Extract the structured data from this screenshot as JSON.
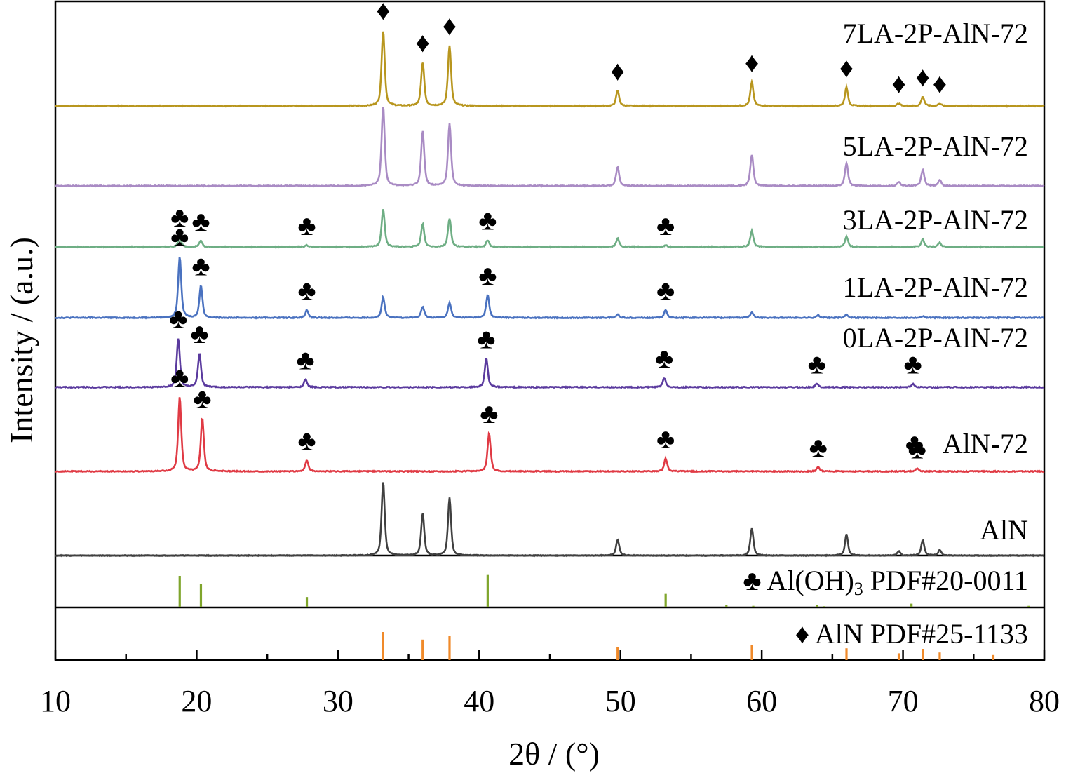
{
  "chart_data": {
    "type": "line",
    "x_range": [
      10,
      80
    ],
    "x_ticks": [
      "10",
      "20",
      "30",
      "40",
      "50",
      "60",
      "70",
      "80"
    ],
    "xlabel": "2θ / (°)",
    "ylabel": "Intensity / (a.u.)",
    "markers": {
      "club": "♣",
      "diamond": "♦"
    },
    "colors": {
      "s7LA": "#B8961E",
      "s5LA": "#A98BC4",
      "s3LA": "#6EAE84",
      "s1LA": "#4A72C0",
      "s0LA": "#5A3A9E",
      "sAlN72": "#E03A44",
      "sAlN": "#404040",
      "refOH": "#7FA52C",
      "refAlN": "#F08A2A"
    },
    "series": [
      {
        "key": "s7LA",
        "name": "7LA-2P-AlN-72",
        "peaks": [
          [
            33.2,
            0.9
          ],
          [
            36.0,
            0.52
          ],
          [
            37.9,
            0.72
          ],
          [
            49.8,
            0.18
          ],
          [
            59.3,
            0.28
          ],
          [
            66.0,
            0.22
          ],
          [
            69.7,
            0.03
          ],
          [
            71.4,
            0.11
          ],
          [
            72.6,
            0.03
          ]
        ],
        "club_markers": [],
        "diamond_markers": [
          33.2,
          36.0,
          37.9,
          49.8,
          59.3,
          66.0,
          69.7,
          71.4,
          72.6
        ]
      },
      {
        "key": "s5LA",
        "name": "5LA-2P-AlN-72",
        "peaks": [
          [
            33.2,
            0.95
          ],
          [
            36.0,
            0.65
          ],
          [
            37.9,
            0.74
          ],
          [
            49.8,
            0.23
          ],
          [
            59.3,
            0.37
          ],
          [
            66.0,
            0.27
          ],
          [
            69.7,
            0.05
          ],
          [
            71.4,
            0.19
          ],
          [
            72.6,
            0.07
          ]
        ],
        "club_markers": [],
        "diamond_markers": []
      },
      {
        "key": "s3LA",
        "name": "3LA-2P-AlN-72",
        "peaks": [
          [
            18.8,
            0.12
          ],
          [
            20.3,
            0.07
          ],
          [
            27.8,
            0.02
          ],
          [
            33.2,
            0.45
          ],
          [
            36.0,
            0.27
          ],
          [
            37.9,
            0.34
          ],
          [
            40.6,
            0.08
          ],
          [
            49.8,
            0.1
          ],
          [
            53.2,
            0.02
          ],
          [
            59.3,
            0.19
          ],
          [
            66.0,
            0.12
          ],
          [
            71.4,
            0.09
          ],
          [
            72.6,
            0.05
          ]
        ],
        "club_markers": [
          18.8,
          20.3,
          27.8,
          40.6,
          53.2
        ],
        "diamond_markers": []
      },
      {
        "key": "s1LA",
        "name": "1LA-2P-AlN-72",
        "peaks": [
          [
            18.8,
            0.73
          ],
          [
            20.3,
            0.38
          ],
          [
            27.8,
            0.09
          ],
          [
            33.2,
            0.24
          ],
          [
            36.0,
            0.13
          ],
          [
            37.9,
            0.18
          ],
          [
            40.6,
            0.27
          ],
          [
            49.8,
            0.04
          ],
          [
            53.2,
            0.09
          ],
          [
            59.3,
            0.07
          ],
          [
            64.0,
            0.03
          ],
          [
            66.0,
            0.04
          ],
          [
            71.4,
            0.02
          ]
        ],
        "club_markers": [
          18.8,
          20.3,
          27.8,
          40.6,
          53.2
        ],
        "diamond_markers": []
      },
      {
        "key": "s0LA",
        "name": "0LA-2P-AlN-72",
        "peaks": [
          [
            18.7,
            0.58
          ],
          [
            20.2,
            0.4
          ],
          [
            27.7,
            0.09
          ],
          [
            40.5,
            0.34
          ],
          [
            53.1,
            0.11
          ],
          [
            63.9,
            0.04
          ],
          [
            70.7,
            0.04
          ]
        ],
        "club_markers": [
          18.7,
          20.2,
          27.7,
          40.5,
          53.1,
          63.9,
          70.7
        ],
        "diamond_markers": []
      },
      {
        "key": "sAlN72",
        "name": "AlN-72",
        "peaks": [
          [
            18.8,
            0.88
          ],
          [
            20.4,
            0.63
          ],
          [
            27.8,
            0.13
          ],
          [
            40.7,
            0.45
          ],
          [
            53.2,
            0.15
          ],
          [
            64.0,
            0.05
          ],
          [
            71.0,
            0.03
          ]
        ],
        "club_markers": [
          18.8,
          20.4,
          27.8,
          40.7,
          53.2,
          64.0,
          71.0
        ],
        "diamond_markers": []
      },
      {
        "key": "sAlN",
        "name": "AlN",
        "peaks": [
          [
            33.2,
            1.05
          ],
          [
            36.0,
            0.6
          ],
          [
            37.9,
            0.82
          ],
          [
            49.8,
            0.23
          ],
          [
            59.3,
            0.39
          ],
          [
            66.0,
            0.3
          ],
          [
            69.7,
            0.06
          ],
          [
            71.4,
            0.22
          ],
          [
            72.6,
            0.08
          ]
        ],
        "club_markers": [],
        "diamond_markers": []
      }
    ],
    "references": [
      {
        "key": "refOH",
        "name": "Al(OH)",
        "subscript": "3",
        "suffix": " PDF#20-0011",
        "marker": "club",
        "lines": [
          [
            18.8,
            1.0
          ],
          [
            20.3,
            0.75
          ],
          [
            27.8,
            0.33
          ],
          [
            40.6,
            1.03
          ],
          [
            53.2,
            0.43
          ],
          [
            57.5,
            0.07
          ],
          [
            59.4,
            0.05
          ],
          [
            63.9,
            0.07
          ],
          [
            64.4,
            0.04
          ],
          [
            70.6,
            0.12
          ],
          [
            78.9,
            0.05
          ]
        ]
      },
      {
        "key": "refAlN",
        "name": "AlN PDF#25-1133",
        "subscript": "",
        "suffix": "",
        "marker": "diamond",
        "lines": [
          [
            33.2,
            1.0
          ],
          [
            36.0,
            0.73
          ],
          [
            37.9,
            0.87
          ],
          [
            49.8,
            0.45
          ],
          [
            59.3,
            0.53
          ],
          [
            66.0,
            0.42
          ],
          [
            69.7,
            0.24
          ],
          [
            71.4,
            0.4
          ],
          [
            72.6,
            0.27
          ],
          [
            76.4,
            0.18
          ]
        ]
      }
    ]
  }
}
